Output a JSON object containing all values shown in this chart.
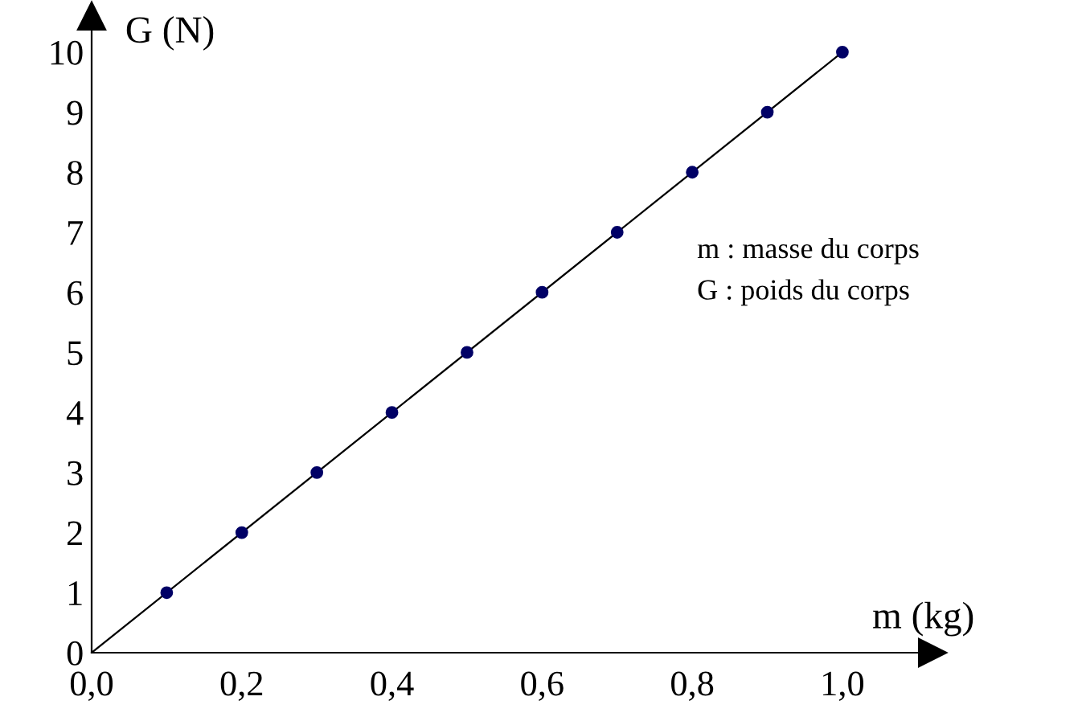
{
  "chart_data": {
    "type": "scatter",
    "xlabel": "m (kg)",
    "ylabel": "G (N)",
    "annotations": [
      "m : masse du corps",
      "G : poids du corps"
    ],
    "series": [
      {
        "type": "line",
        "x": [
          0,
          1.0
        ],
        "values": [
          0,
          10
        ],
        "color": "#000000",
        "marker": "none",
        "line_style": "solid"
      },
      {
        "x": [
          0.1,
          0.2,
          0.3,
          0.4,
          0.5,
          0.6,
          0.7,
          0.8,
          0.9,
          1.0
        ],
        "values": [
          1,
          2,
          3,
          4,
          5,
          6,
          7,
          8,
          9,
          10
        ],
        "color": "#000066",
        "marker": "circle"
      }
    ],
    "xlim": [
      0,
      1.12
    ],
    "ylim": [
      0,
      10.6
    ],
    "xticks": [
      {
        "value": 0,
        "label": "0,0"
      },
      {
        "value": 0.2,
        "label": "0,2"
      },
      {
        "value": 0.4,
        "label": "0,4"
      },
      {
        "value": 0.6,
        "label": "0,6"
      },
      {
        "value": 0.8,
        "label": "0,8"
      },
      {
        "value": 1.0,
        "label": "1,0"
      }
    ],
    "yticks": [
      0,
      1,
      2,
      3,
      4,
      5,
      6,
      7,
      8,
      9,
      10
    ],
    "grid": false,
    "legend": false
  }
}
